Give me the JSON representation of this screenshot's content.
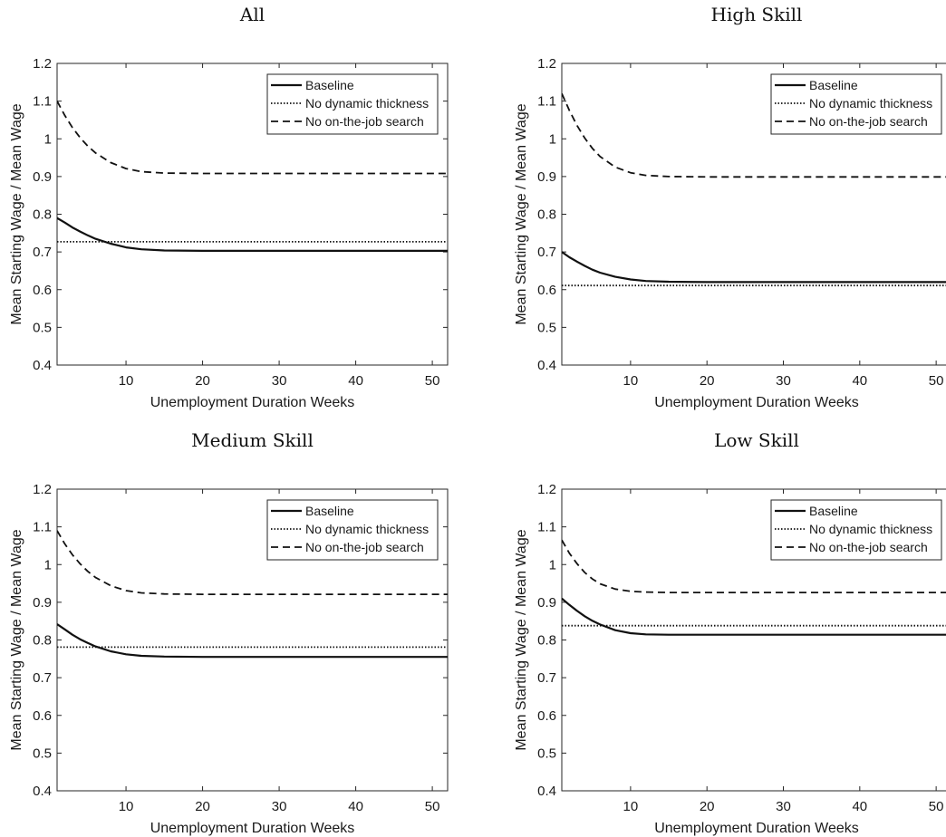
{
  "chart_data": [
    {
      "type": "line",
      "title": "All",
      "xlabel": "Unemployment Duration Weeks",
      "ylabel": "Mean Starting Wage / Mean Wage",
      "xlim": [
        1,
        52
      ],
      "ylim": [
        0.4,
        1.2
      ],
      "xticks": [
        10,
        20,
        30,
        40,
        50
      ],
      "yticks": [
        0.4,
        0.5,
        0.6,
        0.7,
        0.8,
        0.9,
        1,
        1.1,
        1.2
      ],
      "grid": false,
      "legend": "top-right",
      "series": [
        {
          "name": "Baseline",
          "style": "solid",
          "x": [
            1,
            2,
            3,
            4,
            5,
            6,
            8,
            10,
            12,
            15,
            20,
            30,
            40,
            52
          ],
          "y": [
            0.79,
            0.778,
            0.765,
            0.754,
            0.744,
            0.735,
            0.722,
            0.712,
            0.707,
            0.704,
            0.703,
            0.703,
            0.703,
            0.703
          ]
        },
        {
          "name": "No dynamic thickness",
          "style": "dotted",
          "x": [
            1,
            52
          ],
          "y": [
            0.727,
            0.727
          ]
        },
        {
          "name": "No on-the-job search",
          "style": "dashed",
          "x": [
            1,
            2,
            3,
            4,
            5,
            6,
            8,
            10,
            12,
            15,
            20,
            30,
            40,
            52
          ],
          "y": [
            1.1,
            1.062,
            1.03,
            1.003,
            0.981,
            0.963,
            0.937,
            0.921,
            0.913,
            0.909,
            0.908,
            0.908,
            0.908,
            0.908
          ]
        }
      ]
    },
    {
      "type": "line",
      "title": "High Skill",
      "xlabel": "Unemployment Duration Weeks",
      "ylabel": "Mean Starting Wage / Mean Wage",
      "xlim": [
        1,
        52
      ],
      "ylim": [
        0.4,
        1.2
      ],
      "xticks": [
        10,
        20,
        30,
        40,
        50
      ],
      "yticks": [
        0.4,
        0.5,
        0.6,
        0.7,
        0.8,
        0.9,
        1,
        1.1,
        1.2
      ],
      "grid": false,
      "legend": "top-right",
      "series": [
        {
          "name": "Baseline",
          "style": "solid",
          "x": [
            1,
            2,
            3,
            4,
            5,
            6,
            8,
            10,
            12,
            15,
            20,
            30,
            40,
            52
          ],
          "y": [
            0.7,
            0.686,
            0.674,
            0.663,
            0.653,
            0.645,
            0.634,
            0.627,
            0.623,
            0.621,
            0.62,
            0.62,
            0.62,
            0.62
          ]
        },
        {
          "name": "No dynamic thickness",
          "style": "dotted",
          "x": [
            1,
            52
          ],
          "y": [
            0.611,
            0.611
          ]
        },
        {
          "name": "No on-the-job search",
          "style": "dashed",
          "x": [
            1,
            2,
            3,
            4,
            5,
            6,
            8,
            10,
            12,
            15,
            20,
            30,
            40,
            52
          ],
          "y": [
            1.12,
            1.075,
            1.035,
            1.002,
            0.975,
            0.953,
            0.925,
            0.91,
            0.903,
            0.9,
            0.899,
            0.899,
            0.899,
            0.899
          ]
        }
      ]
    },
    {
      "type": "line",
      "title": "Medium Skill",
      "xlabel": "Unemployment Duration Weeks",
      "ylabel": "Mean Starting Wage / Mean Wage",
      "xlim": [
        1,
        52
      ],
      "ylim": [
        0.4,
        1.2
      ],
      "xticks": [
        10,
        20,
        30,
        40,
        50
      ],
      "yticks": [
        0.4,
        0.5,
        0.6,
        0.7,
        0.8,
        0.9,
        1,
        1.1,
        1.2
      ],
      "grid": false,
      "legend": "top-right",
      "series": [
        {
          "name": "Baseline",
          "style": "solid",
          "x": [
            1,
            2,
            3,
            4,
            5,
            6,
            8,
            10,
            12,
            15,
            20,
            30,
            40,
            52
          ],
          "y": [
            0.842,
            0.828,
            0.814,
            0.802,
            0.792,
            0.783,
            0.77,
            0.762,
            0.758,
            0.756,
            0.755,
            0.755,
            0.755,
            0.755
          ]
        },
        {
          "name": "No dynamic thickness",
          "style": "dotted",
          "x": [
            1,
            52
          ],
          "y": [
            0.781,
            0.781
          ]
        },
        {
          "name": "No on-the-job search",
          "style": "dashed",
          "x": [
            1,
            2,
            3,
            4,
            5,
            6,
            8,
            10,
            12,
            15,
            20,
            30,
            40,
            52
          ],
          "y": [
            1.09,
            1.055,
            1.026,
            1.002,
            0.982,
            0.966,
            0.944,
            0.931,
            0.925,
            0.922,
            0.921,
            0.921,
            0.921,
            0.921
          ]
        }
      ]
    },
    {
      "type": "line",
      "title": "Low Skill",
      "xlabel": "Unemployment Duration Weeks",
      "ylabel": "Mean Starting Wage / Mean Wage",
      "xlim": [
        1,
        52
      ],
      "ylim": [
        0.4,
        1.2
      ],
      "xticks": [
        10,
        20,
        30,
        40,
        50
      ],
      "yticks": [
        0.4,
        0.5,
        0.6,
        0.7,
        0.8,
        0.9,
        1,
        1.1,
        1.2
      ],
      "grid": false,
      "legend": "top-right",
      "series": [
        {
          "name": "Baseline",
          "style": "solid",
          "x": [
            1,
            2,
            3,
            4,
            5,
            6,
            8,
            10,
            12,
            15,
            20,
            30,
            40,
            52
          ],
          "y": [
            0.91,
            0.893,
            0.877,
            0.863,
            0.851,
            0.841,
            0.826,
            0.818,
            0.815,
            0.814,
            0.814,
            0.814,
            0.814,
            0.814
          ]
        },
        {
          "name": "No dynamic thickness",
          "style": "dotted",
          "x": [
            1,
            52
          ],
          "y": [
            0.838,
            0.838
          ]
        },
        {
          "name": "No on-the-job search",
          "style": "dashed",
          "x": [
            1,
            2,
            3,
            4,
            5,
            6,
            8,
            10,
            12,
            15,
            20,
            30,
            40,
            52
          ],
          "y": [
            1.065,
            1.03,
            1.002,
            0.979,
            0.962,
            0.949,
            0.935,
            0.929,
            0.927,
            0.926,
            0.926,
            0.926,
            0.926,
            0.926
          ]
        }
      ]
    }
  ]
}
